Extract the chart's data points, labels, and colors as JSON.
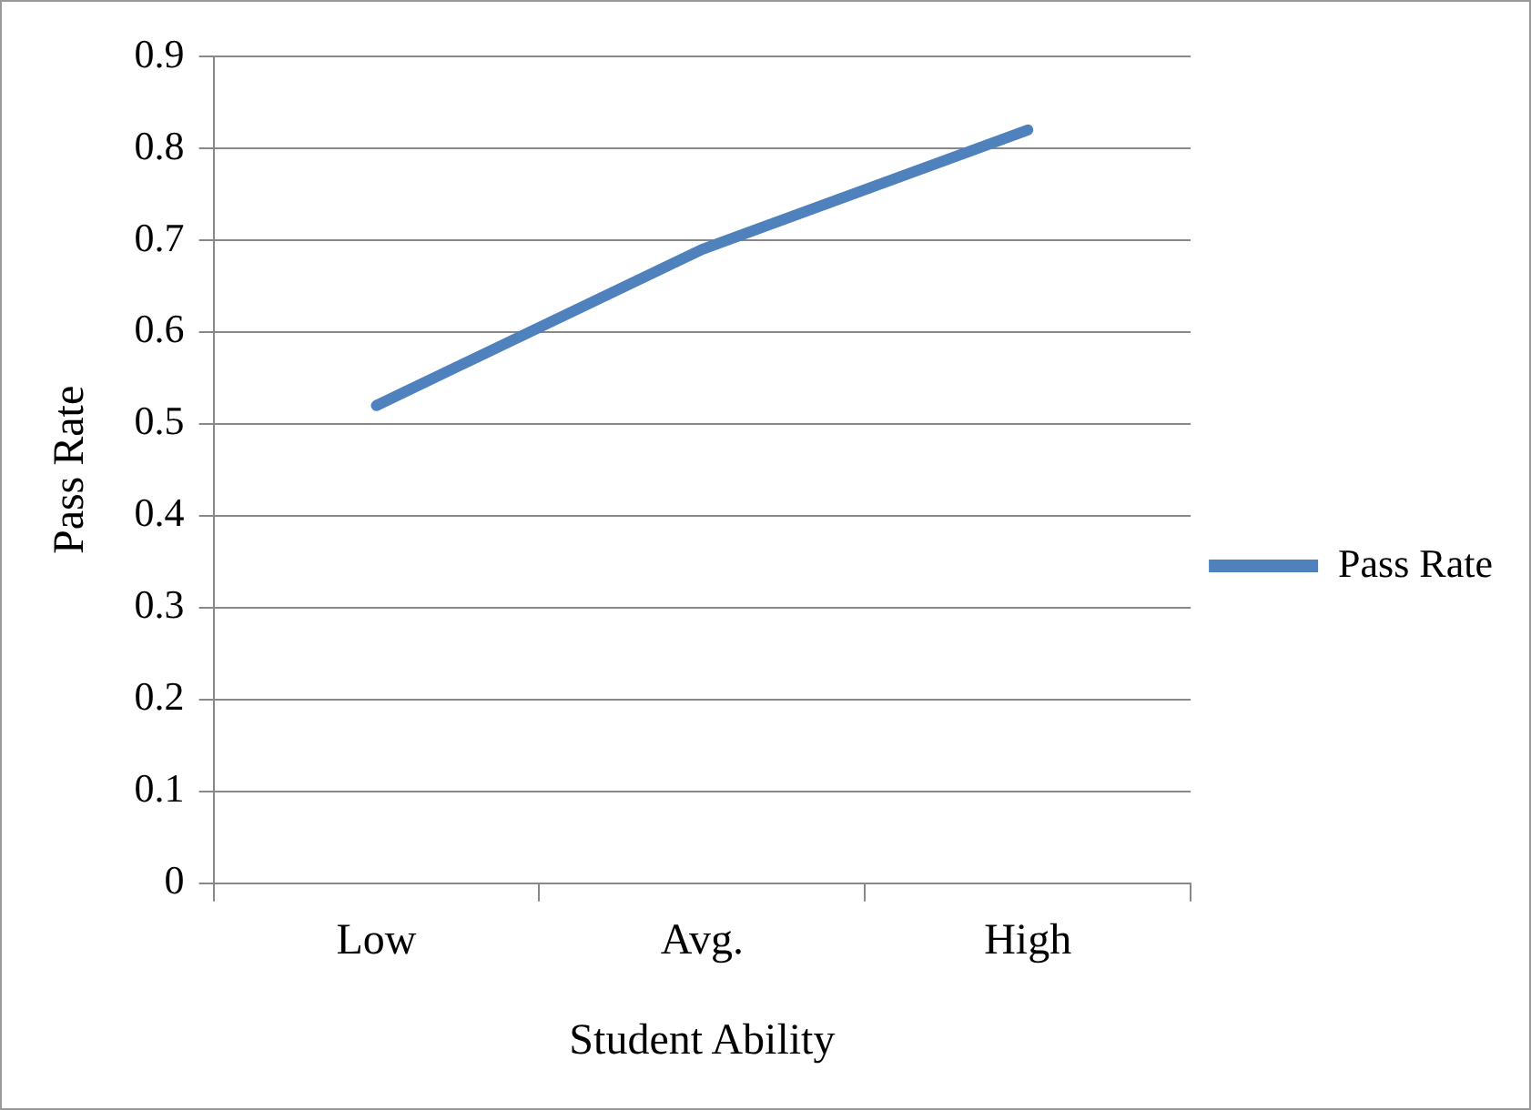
{
  "chart_data": {
    "type": "line",
    "xlabel": "Student Ability",
    "ylabel": "Pass Rate",
    "categories": [
      "Low",
      "Avg.",
      "High"
    ],
    "series": [
      {
        "name": "Pass Rate",
        "color": "#4f81bd",
        "values": [
          0.52,
          0.69,
          0.82
        ]
      }
    ],
    "ylim": [
      0,
      0.9
    ],
    "yticks": [
      0,
      0.1,
      0.2,
      0.3,
      0.4,
      0.5,
      0.6,
      0.7,
      0.8,
      0.9
    ],
    "grid": "y",
    "legend": "right",
    "marker": "none",
    "line_style": "solid"
  }
}
